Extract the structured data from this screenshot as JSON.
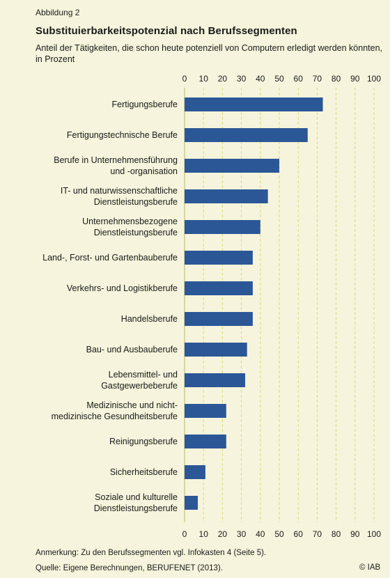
{
  "figure_label": "Abbildung 2",
  "title": "Substituierbarkeitspotenzial nach Berufssegmenten",
  "subtitle": "Anteil der Tätigkeiten, die schon heute potenziell von Computern erledigt werden könnten, in Prozent",
  "note": "Anmerkung: Zu den Berufssegmenten vgl. Infokasten 4 (Seite 5).",
  "source": "Quelle: Eigene Berechnungen, BERUFENET (2013).",
  "copyright": "© IAB",
  "colors": {
    "background": "#f6f4dc",
    "bar": "#2b5797",
    "grid": "#d9d97a"
  },
  "chart_data": {
    "type": "bar",
    "orientation": "horizontal",
    "xlim": [
      0,
      100
    ],
    "ticks": [
      0,
      10,
      20,
      30,
      40,
      50,
      60,
      70,
      80,
      90,
      100
    ],
    "grid": true,
    "categories": [
      [
        "Fertigungsberufe"
      ],
      [
        "Fertigungstechnische Berufe"
      ],
      [
        "Berufe in Unternehmensführung",
        "und -organisation"
      ],
      [
        "IT- und naturwissenschaftliche",
        "Dienstleistungsberufe"
      ],
      [
        "Unternehmensbezogene",
        "Dienstleistungsberufe"
      ],
      [
        "Land-, Forst- und Gartenbauberufe"
      ],
      [
        "Verkehrs- und Logistikberufe"
      ],
      [
        "Handelsberufe"
      ],
      [
        "Bau- und Ausbauberufe"
      ],
      [
        "Lebensmittel- und",
        "Gastgewerbeberufe"
      ],
      [
        "Medizinische und nicht-",
        "medizinische Gesundheitsberufe"
      ],
      [
        "Reinigungsberufe"
      ],
      [
        "Sicherheitsberufe"
      ],
      [
        "Soziale und kulturelle",
        "Dienstleistungsberufe"
      ]
    ],
    "values": [
      73,
      65,
      50,
      44,
      40,
      36,
      36,
      36,
      33,
      32,
      22,
      22,
      11,
      7
    ]
  }
}
